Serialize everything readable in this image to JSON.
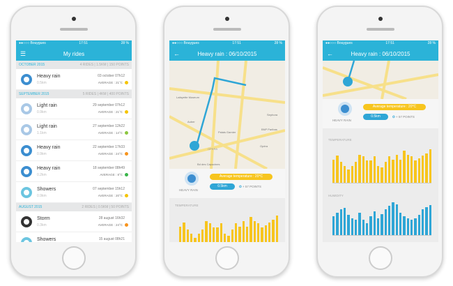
{
  "status": {
    "carrier": "●●○○○ Bouygues",
    "time": "17:51",
    "battery": "28 %"
  },
  "rides": {
    "title": "My rides",
    "sections": [
      {
        "month": "OCTOBER 2015",
        "summary": "4 RIDES | 1.5KM | 150 POINTS",
        "items": [
          {
            "name": "Heavy rain",
            "dist": "0.5km",
            "date": "03 october 07h12",
            "avg": "AVERAGE : 21°C",
            "dot": "#f5c400",
            "icon": "#3c8ed0"
          }
        ]
      },
      {
        "month": "SEPTEMBER 2015",
        "summary": "5 RIDES | 4KM | 400 POINTS",
        "items": [
          {
            "name": "Light rain",
            "dist": "0.9km",
            "date": "29 september 07h12",
            "avg": "AVERAGE : 21°C",
            "dot": "#f5c400",
            "icon": "#a9c8e6"
          },
          {
            "name": "Light rain",
            "dist": "1.1km",
            "date": "27 september 12h22",
            "avg": "AVERAGE : 14°C",
            "dot": "#8cc63f",
            "icon": "#a9c8e6"
          },
          {
            "name": "Heavy rain",
            "dist": "0.9km",
            "date": "22 september 17h33",
            "avg": "AVERAGE : 24°C",
            "dot": "#f7941d",
            "icon": "#3c8ed0"
          },
          {
            "name": "Heavy rain",
            "dist": "0.2km",
            "date": "18 september 08h49",
            "avg": "AVERAGE : 8°C",
            "dot": "#39b54a",
            "icon": "#3c8ed0"
          },
          {
            "name": "Showers",
            "dist": "0.9km",
            "date": "07 september 15h12",
            "avg": "AVERAGE : 20°C",
            "dot": "#f5c400",
            "icon": "#6cc5e0"
          }
        ]
      },
      {
        "month": "AUGUST 2015",
        "summary": "2 RIDES | 0.5KM | 50 POINTS",
        "items": [
          {
            "name": "Storm",
            "dist": "0.3km",
            "date": "28 august 16h32",
            "avg": "AVERAGE : 24°C",
            "dot": "#f7941d",
            "icon": "#333333"
          },
          {
            "name": "Showers",
            "dist": "",
            "date": "15 august 08h21",
            "avg": "",
            "dot": "#f5c400",
            "icon": "#6cc5e0"
          }
        ]
      }
    ]
  },
  "detail": {
    "title": "Heavy rain : 06/10/2015",
    "weather": "HEAVY RAIN",
    "avg_temp": "Average temperature : 20°C",
    "distance": "0.5km",
    "points": "+ 57 POINTS",
    "temperature_label": "TEMPERATURE",
    "humidity_label": "HUMIDITY",
    "map_labels": [
      "Lafayette Museum",
      "Auber",
      "Palais Garnier",
      "Opéra",
      "BNP Paribas",
      "OPERA",
      "Bd des Capucines",
      "Sephora"
    ]
  },
  "colors": {
    "accent": "#2bb3d8",
    "temp": "#f7c51e",
    "humidity": "#2fa6d6"
  },
  "chart_data": [
    {
      "type": "bar",
      "name": "TEMPERATURE",
      "values": [
        0.62,
        0.72,
        0.55,
        0.45,
        0.35,
        0.45,
        0.55,
        0.75,
        0.7,
        0.6,
        0.6,
        0.7,
        0.45,
        0.4,
        0.55,
        0.7,
        0.62,
        0.75,
        0.62,
        0.85,
        0.75,
        0.7,
        0.6,
        0.65,
        0.72,
        0.78,
        0.88
      ]
    },
    {
      "type": "bar",
      "name": "HUMIDITY",
      "values": [
        0.55,
        0.65,
        0.75,
        0.8,
        0.6,
        0.5,
        0.45,
        0.65,
        0.45,
        0.35,
        0.55,
        0.7,
        0.48,
        0.62,
        0.75,
        0.85,
        0.95,
        0.9,
        0.65,
        0.55,
        0.5,
        0.45,
        0.5,
        0.6,
        0.75,
        0.82,
        0.88
      ]
    }
  ]
}
